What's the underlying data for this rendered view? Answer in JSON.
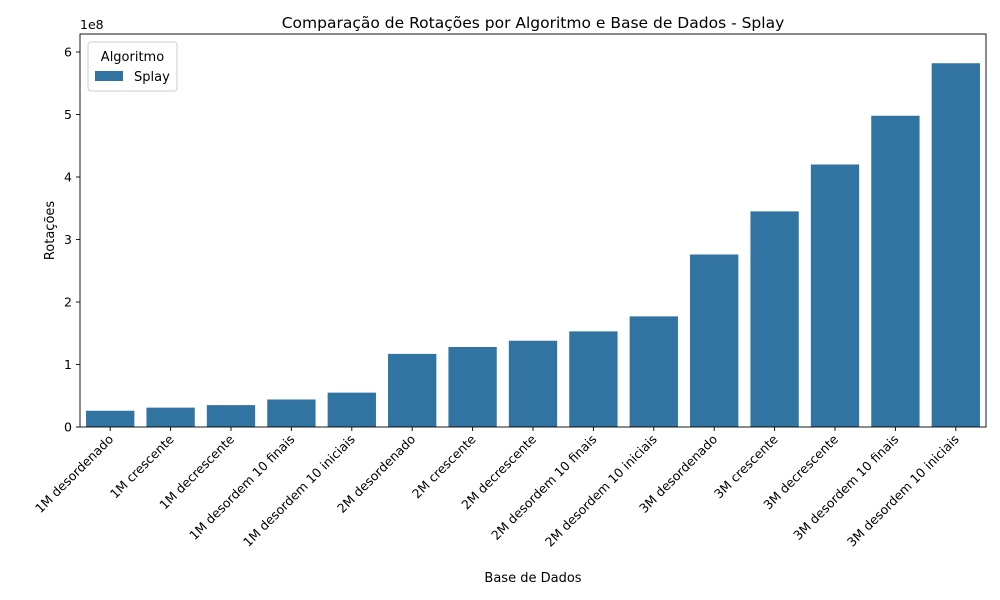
{
  "chart_data": {
    "type": "bar",
    "title": "Comparação de Rotações por Algoritmo e Base de Dados - Splay",
    "xlabel": "Base de Dados",
    "ylabel": "Rotações",
    "y_offset_label": "1e8",
    "y_scale": 100000000,
    "ylim": [
      0,
      600000000
    ],
    "yticks": [
      0,
      100000000,
      200000000,
      300000000,
      400000000,
      500000000,
      600000000
    ],
    "ytick_labels": [
      "0",
      "1",
      "2",
      "3",
      "4",
      "5",
      "6"
    ],
    "grid": false,
    "legend": {
      "title": "Algoritmo",
      "position": "top-left",
      "entries": [
        "Splay"
      ]
    },
    "colors": {
      "Splay": "#3274a1"
    },
    "categories": [
      "1M desordenado",
      "1M crescente",
      "1M decrescente",
      "1M desordem 10 finais",
      "1M desordem 10 iniciais",
      "2M desordenado",
      "2M crescente",
      "2M decrescente",
      "2M desordem 10 finais",
      "2M desordem 10 iniciais",
      "3M desordenado",
      "3M crescente",
      "3M decrescente",
      "3M desordem 10 finais",
      "3M desordem 10 iniciais"
    ],
    "series": [
      {
        "name": "Splay",
        "values": [
          26000000,
          31000000,
          35000000,
          44000000,
          55000000,
          117000000,
          128000000,
          138000000,
          153000000,
          177000000,
          276000000,
          345000000,
          420000000,
          498000000,
          582000000
        ]
      }
    ]
  }
}
